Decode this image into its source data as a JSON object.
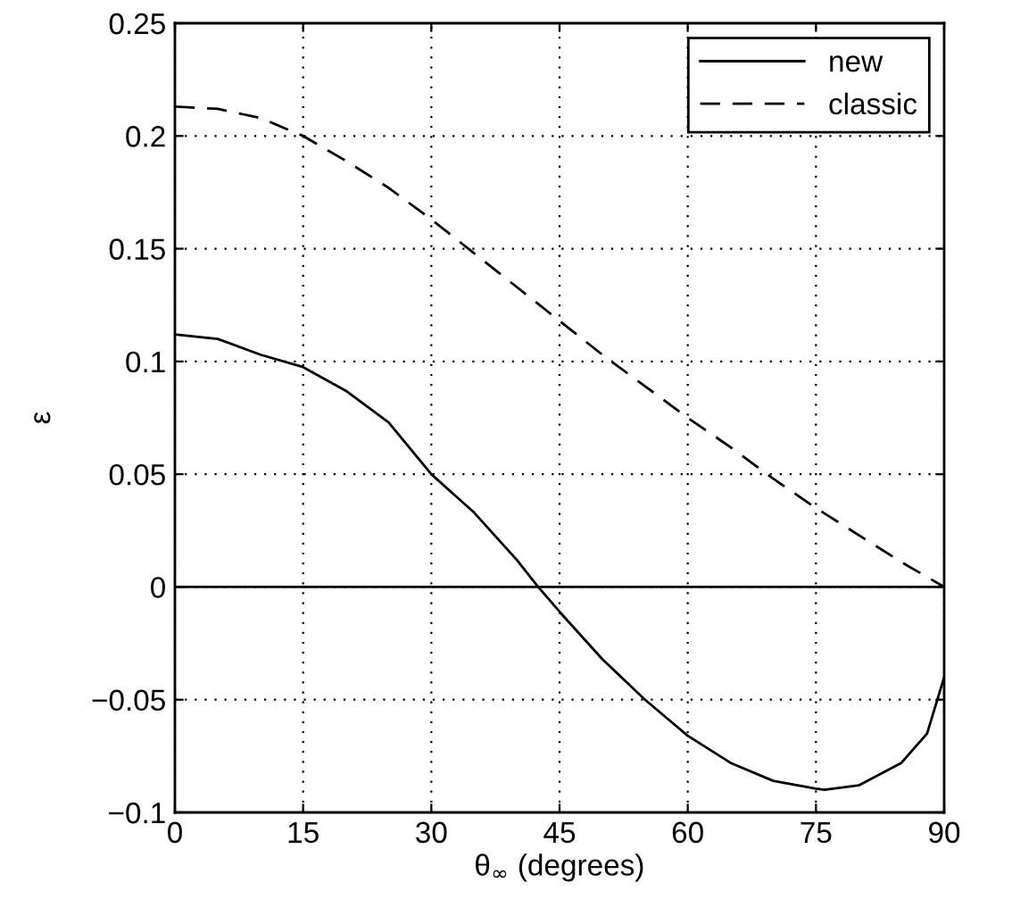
{
  "chart_data": {
    "type": "line",
    "xlabel": "θ$_{∞}$ (degrees)",
    "ylabel": "ε",
    "xlim": [
      0,
      90
    ],
    "xticks": [
      0,
      15,
      30,
      45,
      60,
      75,
      90
    ],
    "ylim": [
      -0.1,
      0.25
    ],
    "yticks": [
      {
        "value": -0.1,
        "label": "−0.1"
      },
      {
        "value": -0.05,
        "label": "−0.05"
      },
      0,
      0.05,
      0.1,
      0.15,
      0.2,
      0.25
    ],
    "grid": true,
    "legend": "top right",
    "ref_lines": [
      {
        "axis": "y",
        "value": 0,
        "color": "#000000",
        "line_style": "solid"
      }
    ],
    "series": [
      {
        "name": "new",
        "color": "#000000",
        "line_style": "solid",
        "x": [
          0,
          5,
          10,
          15,
          20,
          25,
          30,
          35,
          40,
          42.5,
          45,
          50,
          55,
          60,
          65,
          70,
          75,
          76,
          80,
          85,
          88,
          90
        ],
        "values": [
          0.112,
          0.11,
          0.103,
          0.0975,
          0.087,
          0.073,
          0.05,
          0.033,
          0.012,
          0,
          -0.011,
          -0.032,
          -0.05,
          -0.066,
          -0.078,
          -0.086,
          -0.0895,
          -0.09,
          -0.088,
          -0.078,
          -0.065,
          -0.04
        ]
      },
      {
        "name": "classic",
        "color": "#000000",
        "line_style": "dashed",
        "x": [
          0,
          5,
          10,
          15,
          20,
          25,
          30,
          35,
          40,
          45,
          50,
          55,
          60,
          65,
          70,
          75,
          80,
          85,
          90
        ],
        "values": [
          0.213,
          0.212,
          0.208,
          0.2,
          0.189,
          0.177,
          0.163,
          0.148,
          0.133,
          0.118,
          0.103,
          0.089,
          0.075,
          0.062,
          0.048,
          0.035,
          0.023,
          0.011,
          0.0
        ]
      }
    ]
  }
}
